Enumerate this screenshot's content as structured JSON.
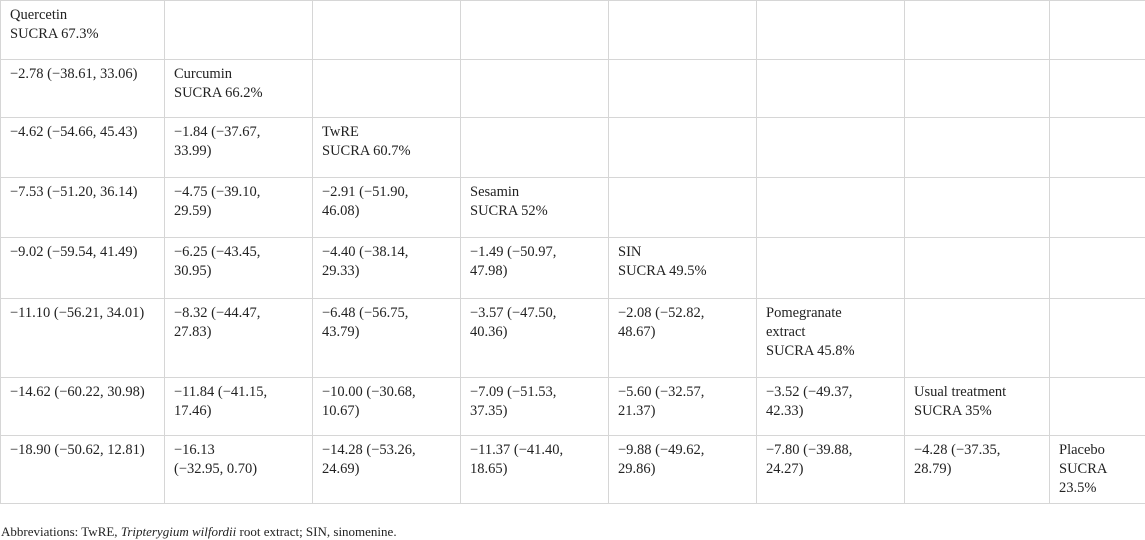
{
  "table": {
    "rows": [
      [
        {
          "lines": [
            "Quercetin",
            "SUCRA 67.3%"
          ]
        },
        null,
        null,
        null,
        null,
        null,
        null,
        null
      ],
      [
        {
          "lines": [
            "−2.78 (−38.61, 33.06)"
          ]
        },
        {
          "lines": [
            "Curcumin",
            "SUCRA 66.2%"
          ]
        },
        null,
        null,
        null,
        null,
        null,
        null
      ],
      [
        {
          "lines": [
            "−4.62 (−54.66, 45.43)"
          ]
        },
        {
          "lines": [
            "−1.84 (−37.67,",
            "33.99)"
          ]
        },
        {
          "lines": [
            "TwRE",
            "SUCRA 60.7%"
          ]
        },
        null,
        null,
        null,
        null,
        null
      ],
      [
        {
          "lines": [
            "−7.53 (−51.20, 36.14)"
          ]
        },
        {
          "lines": [
            "−4.75 (−39.10,",
            "29.59)"
          ]
        },
        {
          "lines": [
            "−2.91 (−51.90,",
            "46.08)"
          ]
        },
        {
          "lines": [
            "Sesamin",
            "SUCRA 52%"
          ]
        },
        null,
        null,
        null,
        null
      ],
      [
        {
          "lines": [
            "−9.02 (−59.54, 41.49)"
          ]
        },
        {
          "lines": [
            "−6.25 (−43.45,",
            "30.95)"
          ]
        },
        {
          "lines": [
            "−4.40 (−38.14,",
            "29.33)"
          ]
        },
        {
          "lines": [
            "−1.49 (−50.97,",
            "47.98)"
          ]
        },
        {
          "lines": [
            "SIN",
            "SUCRA 49.5%"
          ]
        },
        null,
        null,
        null
      ],
      [
        {
          "lines": [
            "−11.10 (−56.21, 34.01)"
          ]
        },
        {
          "lines": [
            "−8.32 (−44.47,",
            "27.83)"
          ]
        },
        {
          "lines": [
            "−6.48 (−56.75,",
            "43.79)"
          ]
        },
        {
          "lines": [
            "−3.57 (−47.50,",
            "40.36)"
          ]
        },
        {
          "lines": [
            "−2.08 (−52.82,",
            "48.67)"
          ]
        },
        {
          "lines": [
            "Pomegranate",
            "extract",
            "SUCRA 45.8%"
          ]
        },
        null,
        null
      ],
      [
        {
          "lines": [
            "−14.62 (−60.22, 30.98)"
          ]
        },
        {
          "lines": [
            "−11.84 (−41.15,",
            "17.46)"
          ]
        },
        {
          "lines": [
            "−10.00 (−30.68,",
            "10.67)"
          ]
        },
        {
          "lines": [
            "−7.09 (−51.53,",
            "37.35)"
          ]
        },
        {
          "lines": [
            "−5.60 (−32.57,",
            "21.37)"
          ]
        },
        {
          "lines": [
            "−3.52 (−49.37,",
            "42.33)"
          ]
        },
        {
          "lines": [
            "Usual treatment",
            "SUCRA 35%"
          ]
        },
        null
      ],
      [
        {
          "lines": [
            "−18.90 (−50.62, 12.81)"
          ]
        },
        {
          "lines": [
            "−16.13",
            "(−32.95, 0.70)"
          ]
        },
        {
          "lines": [
            "−14.28 (−53.26,",
            "24.69)"
          ]
        },
        {
          "lines": [
            "−11.37 (−41.40,",
            "18.65)"
          ]
        },
        {
          "lines": [
            "−9.88 (−49.62,",
            "29.86)"
          ]
        },
        {
          "lines": [
            "−7.80 (−39.88,",
            "24.27)"
          ]
        },
        {
          "lines": [
            "−4.28 (−37.35,",
            "28.79)"
          ]
        },
        {
          "lines": [
            "Placebo",
            "SUCRA",
            "23.5%"
          ]
        }
      ]
    ]
  },
  "footnote": {
    "prefix": "Abbreviations: TwRE, ",
    "italic": "Tripterygium wilfordii",
    "suffix": " root extract; SIN, sinomenine."
  }
}
